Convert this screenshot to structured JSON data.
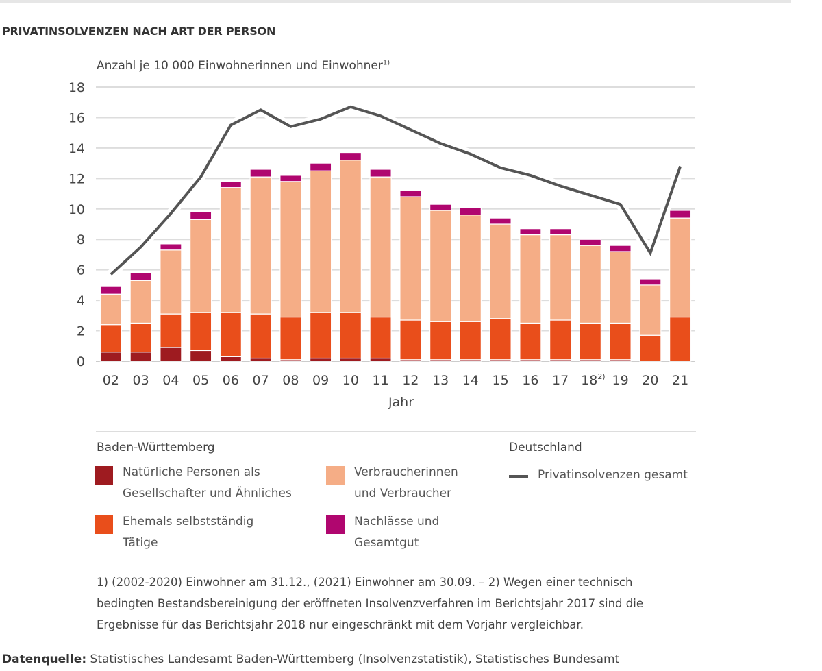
{
  "title": "PRIVATINSOLVENZEN NACH ART DER PERSON",
  "ylabel": "Anzahl je 10 000 Einwohnerinnen und Einwohner",
  "ylabel_sup": "1)",
  "chart_data": {
    "type": "bar",
    "stacked": true,
    "xlabel": "Jahr",
    "categories": [
      "02",
      "03",
      "04",
      "05",
      "06",
      "07",
      "08",
      "09",
      "10",
      "11",
      "12",
      "13",
      "14",
      "15",
      "16",
      "17",
      "18",
      "19",
      "20",
      "21"
    ],
    "category_superscripts": {
      "18": "2)"
    },
    "ylim": [
      0,
      18
    ],
    "yticks": [
      0,
      2,
      4,
      6,
      8,
      10,
      12,
      14,
      16,
      18
    ],
    "grid": true,
    "series": [
      {
        "name": "Natürliche Personen als Gesellschafter und Ähnliches",
        "color": "#9e1b20",
        "values": [
          0.6,
          0.6,
          0.9,
          0.7,
          0.3,
          0.2,
          0.1,
          0.2,
          0.2,
          0.2,
          0.1,
          0.1,
          0.1,
          0.1,
          0.1,
          0.1,
          0.1,
          0.1,
          0.0,
          0.0
        ]
      },
      {
        "name": "Ehemals selbstständig Tätige",
        "color": "#e94e1b",
        "values": [
          1.8,
          1.9,
          2.2,
          2.5,
          2.9,
          2.9,
          2.8,
          3.0,
          3.0,
          2.7,
          2.6,
          2.5,
          2.5,
          2.7,
          2.4,
          2.6,
          2.4,
          2.4,
          1.7,
          2.9
        ]
      },
      {
        "name": "Verbraucherinnen und Verbraucher",
        "color": "#f5ad86",
        "values": [
          2.0,
          2.8,
          4.2,
          6.1,
          8.2,
          9.0,
          8.9,
          9.3,
          10.0,
          9.2,
          8.1,
          7.3,
          7.0,
          6.2,
          5.8,
          5.6,
          5.1,
          4.7,
          3.3,
          6.5
        ]
      },
      {
        "name": "Nachlässe und Gesamtgut",
        "color": "#b0066f",
        "values": [
          0.5,
          0.5,
          0.4,
          0.5,
          0.4,
          0.5,
          0.4,
          0.5,
          0.5,
          0.5,
          0.4,
          0.4,
          0.5,
          0.4,
          0.4,
          0.4,
          0.4,
          0.4,
          0.4,
          0.5
        ]
      }
    ],
    "line_series": {
      "name": "Privatinsolvenzen gesamt",
      "color": "#555555",
      "values": [
        5.7,
        7.5,
        9.7,
        12.1,
        15.5,
        16.5,
        15.4,
        15.9,
        16.7,
        16.1,
        15.2,
        14.3,
        13.6,
        12.7,
        12.2,
        11.5,
        10.9,
        10.3,
        7.1,
        12.8
      ]
    }
  },
  "legend": {
    "group_bw": "Baden-Württemberg",
    "group_de": "Deutschland",
    "items": [
      {
        "line1": "Natürliche Personen als",
        "line2": "Gesellschafter und Ähnliches"
      },
      {
        "line1": "Verbraucherinnen",
        "line2": "und Verbraucher"
      },
      {
        "line1": "Ehemals selbstständig",
        "line2": "Tätige"
      },
      {
        "line1": "Nachlässe und",
        "line2": "Gesamtgut"
      }
    ],
    "line_item": "Privatinsolvenzen gesamt"
  },
  "notes": [
    "1) (2002-2020) Einwohner am 31.12., (2021) Einwohner am 30.09. – 2) Wegen einer technisch",
    "bedingten Bestandsbereinigung der eröffneten Insolvenzverfahren im Berichtsjahr 2017 sind die",
    "Ergebnisse für das Berichtsjahr 2018 nur eingeschränkt mit dem Vorjahr vergleichbar."
  ],
  "source_label": "Datenquelle:",
  "source_text": " Statistisches Landesamt Baden-Württemberg (Insolvenzstatistik), Statistisches Bundesamt"
}
